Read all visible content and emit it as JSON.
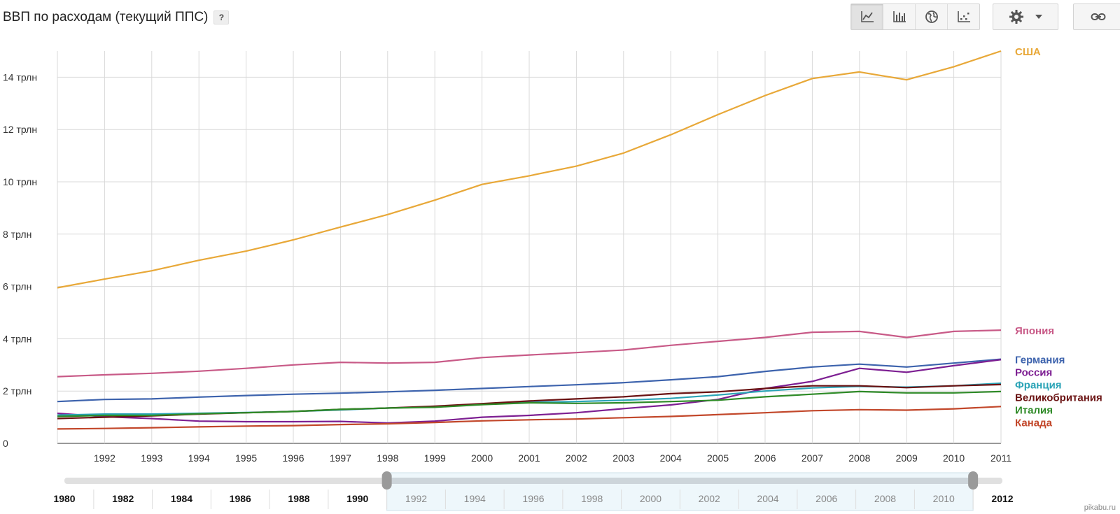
{
  "header": {
    "title": "ВВП по расходам (текущий ППС)",
    "help_label": "?"
  },
  "toolbar": {
    "buttons": [
      {
        "icon": "line-chart-icon",
        "active": true
      },
      {
        "icon": "bar-chart-icon",
        "active": false
      },
      {
        "icon": "globe-map-icon",
        "active": false
      },
      {
        "icon": "scatter-chart-icon",
        "active": false
      }
    ],
    "settings_icon": "gear-icon",
    "link_icon": "link-icon"
  },
  "watermark": "pikabu.ru",
  "chart_data": {
    "type": "line",
    "title": "ВВП по расходам (текущий ППС)",
    "x": [
      1991,
      1992,
      1993,
      1994,
      1995,
      1996,
      1997,
      1998,
      1999,
      2000,
      2001,
      2002,
      2003,
      2004,
      2005,
      2006,
      2007,
      2008,
      2009,
      2010,
      2011
    ],
    "x_tick_labels": [
      "1992",
      "1993",
      "1994",
      "1995",
      "1996",
      "1997",
      "1998",
      "1999",
      "2000",
      "2001",
      "2002",
      "2003",
      "2004",
      "2005",
      "2006",
      "2007",
      "2008",
      "2009",
      "2010",
      "2011"
    ],
    "ylim": [
      0,
      15
    ],
    "y_ticks": [
      0,
      2,
      4,
      6,
      8,
      10,
      12,
      14
    ],
    "y_tick_labels": [
      "0",
      "2 трлн",
      "4 трлн",
      "6 трлн",
      "8 трлн",
      "10 трлн",
      "12 трлн",
      "14 трлн"
    ],
    "grid": true,
    "legend": "right-end-labels",
    "series": [
      {
        "name": "США",
        "color": "#e8a838",
        "values": [
          5.95,
          6.28,
          6.6,
          7.0,
          7.35,
          7.78,
          8.27,
          8.75,
          9.3,
          9.9,
          10.23,
          10.6,
          11.1,
          11.8,
          12.57,
          13.3,
          13.95,
          14.2,
          13.9,
          14.4,
          15.0
        ]
      },
      {
        "name": "Япония",
        "color": "#c85a87",
        "values": [
          2.55,
          2.62,
          2.68,
          2.76,
          2.87,
          3.0,
          3.1,
          3.07,
          3.1,
          3.28,
          3.38,
          3.47,
          3.57,
          3.75,
          3.9,
          4.05,
          4.25,
          4.28,
          4.05,
          4.28,
          4.33
        ]
      },
      {
        "name": "Германия",
        "color": "#3d63ad",
        "values": [
          1.6,
          1.68,
          1.7,
          1.77,
          1.83,
          1.88,
          1.92,
          1.97,
          2.03,
          2.1,
          2.17,
          2.24,
          2.32,
          2.43,
          2.55,
          2.75,
          2.92,
          3.03,
          2.92,
          3.07,
          3.22
        ]
      },
      {
        "name": "Россия",
        "color": "#7d1f92",
        "values": [
          1.15,
          1.02,
          0.95,
          0.85,
          0.83,
          0.83,
          0.84,
          0.78,
          0.85,
          1.0,
          1.07,
          1.17,
          1.33,
          1.47,
          1.68,
          2.1,
          2.37,
          2.87,
          2.72,
          2.97,
          3.2
        ]
      },
      {
        "name": "Франция",
        "color": "#2aa3b6",
        "values": [
          1.08,
          1.12,
          1.12,
          1.15,
          1.18,
          1.22,
          1.28,
          1.35,
          1.4,
          1.5,
          1.57,
          1.6,
          1.65,
          1.72,
          1.85,
          2.0,
          2.12,
          2.18,
          2.15,
          2.2,
          2.3
        ]
      },
      {
        "name": "Великобритания",
        "color": "#6a1212",
        "values": [
          0.95,
          1.0,
          1.05,
          1.12,
          1.17,
          1.22,
          1.3,
          1.35,
          1.42,
          1.52,
          1.62,
          1.7,
          1.78,
          1.9,
          1.97,
          2.1,
          2.2,
          2.2,
          2.13,
          2.2,
          2.25
        ]
      },
      {
        "name": "Италия",
        "color": "#2e8a27",
        "values": [
          1.03,
          1.07,
          1.07,
          1.13,
          1.17,
          1.22,
          1.3,
          1.35,
          1.38,
          1.48,
          1.55,
          1.53,
          1.55,
          1.6,
          1.65,
          1.78,
          1.88,
          1.98,
          1.93,
          1.93,
          1.98
        ]
      },
      {
        "name": "Канада",
        "color": "#c2472a",
        "values": [
          0.55,
          0.57,
          0.6,
          0.63,
          0.66,
          0.68,
          0.72,
          0.75,
          0.8,
          0.86,
          0.9,
          0.93,
          0.98,
          1.03,
          1.1,
          1.17,
          1.25,
          1.29,
          1.27,
          1.32,
          1.41
        ]
      }
    ],
    "range_slider": {
      "full_range_labels": [
        "1980",
        "1982",
        "1984",
        "1986",
        "1988",
        "1990",
        "1992",
        "1994",
        "1996",
        "1998",
        "2000",
        "2002",
        "2004",
        "2006",
        "2008",
        "2010",
        "2012"
      ],
      "selection_start": 1991,
      "selection_end": 2011
    }
  }
}
